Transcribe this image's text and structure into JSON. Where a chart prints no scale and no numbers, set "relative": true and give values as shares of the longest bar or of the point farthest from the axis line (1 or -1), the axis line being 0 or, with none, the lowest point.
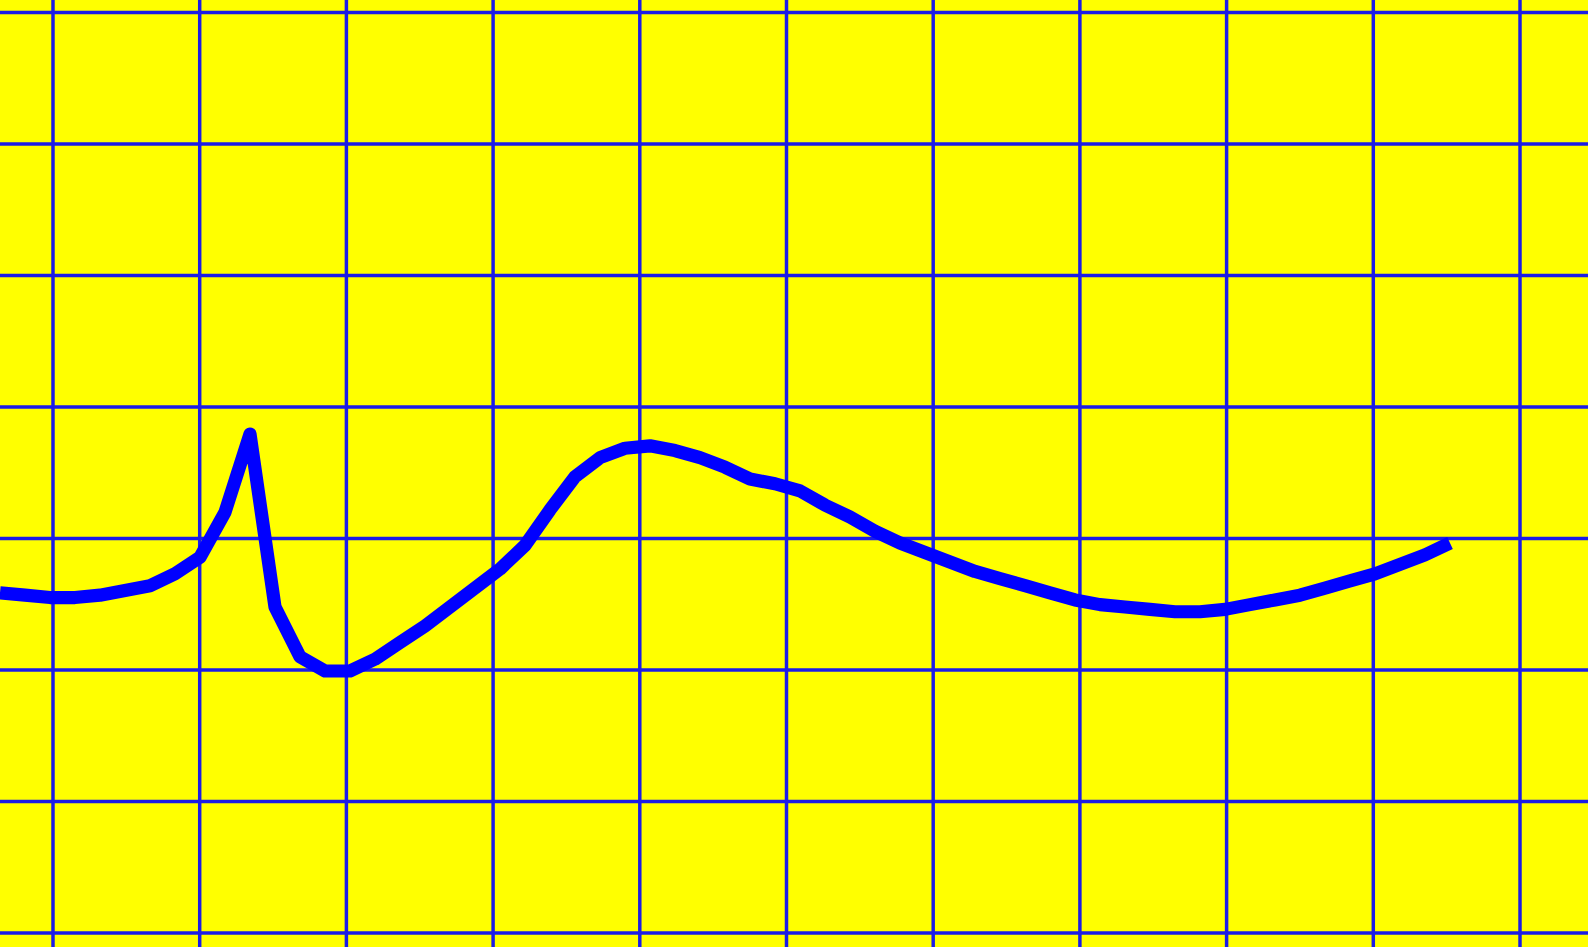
{
  "chart_data": {
    "type": "line",
    "relative": true,
    "grid": true,
    "line_style": "solid",
    "marker": "none",
    "categories": [
      null,
      null,
      null,
      null,
      null,
      null,
      null,
      null,
      null,
      null,
      null,
      null,
      null,
      null,
      null,
      null,
      null,
      null,
      null,
      null,
      null,
      null,
      null,
      null,
      null,
      null,
      null,
      null,
      null,
      null,
      null,
      null,
      null,
      null,
      null,
      null,
      null,
      null,
      null,
      null,
      null,
      null,
      null,
      null,
      null,
      null,
      null,
      null,
      null,
      null,
      null,
      null,
      null,
      null,
      null,
      null,
      null,
      null,
      null
    ],
    "series": [
      {
        "color": "#0000ff",
        "values": [
          0.33,
          0.32,
          0.31,
          0.31,
          0.32,
          0.34,
          0.36,
          0.41,
          0.48,
          0.67,
          1,
          0.27,
          0.06,
          0,
          0.0,
          0.05,
          0.12,
          0.19,
          0.27,
          0.35,
          0.43,
          0.53,
          0.68,
          0.82,
          0.9,
          0.94,
          0.95,
          0.93,
          0.9,
          0.86,
          0.81,
          0.79,
          0.76,
          0.7,
          0.65,
          0.59,
          0.54,
          0.5,
          0.46,
          0.42,
          0.39,
          0.36,
          0.33,
          0.3,
          0.28,
          0.27,
          0.26,
          0.25,
          0.25,
          0.26,
          0.28,
          0.3,
          0.32,
          0.35,
          0.38,
          0.41,
          0.45,
          0.49,
          0.54
        ]
      }
    ]
  }
}
